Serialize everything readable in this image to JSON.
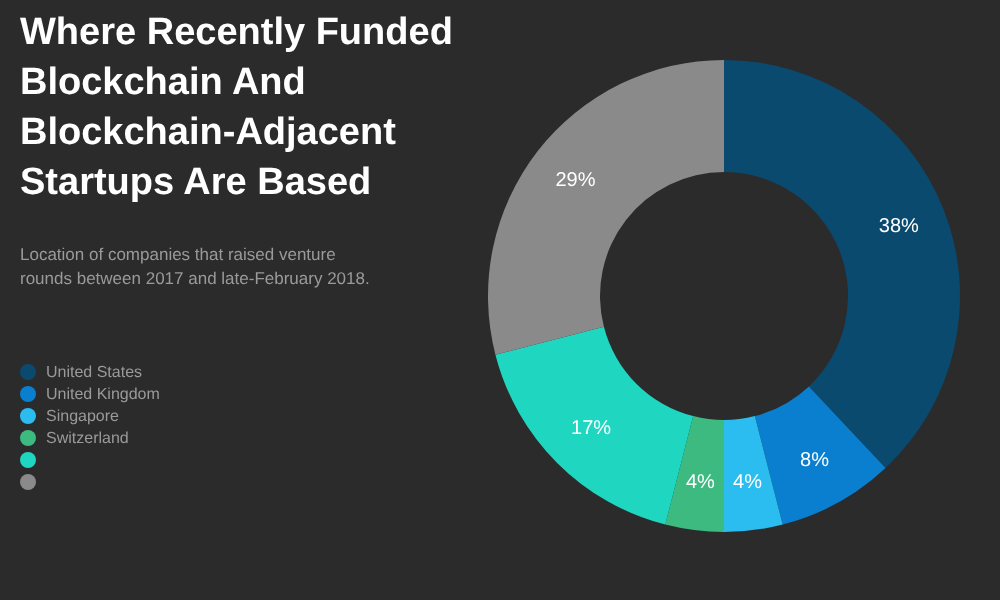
{
  "chart_data": {
    "type": "donut",
    "title": "Where Recently Funded Blockchain And Blockchain-Adjacent Startups Are Based",
    "subtitle": "Location of companies that raised venture rounds between 2017 and late-February 2018.",
    "categories": [
      "United States",
      "United Kingdom",
      "Singapore",
      "Switzerland",
      null,
      null
    ],
    "values": [
      38,
      8,
      4,
      4,
      17,
      29
    ],
    "colors": [
      "#0b4a6f",
      "#0a7fcf",
      "#2bbcf0",
      "#3dba7f",
      "#1fd6c0",
      "#8a8a8a"
    ],
    "value_labels": [
      "38%",
      "8%",
      "4%",
      "4%",
      "17%",
      "29%"
    ],
    "legend": "left"
  }
}
